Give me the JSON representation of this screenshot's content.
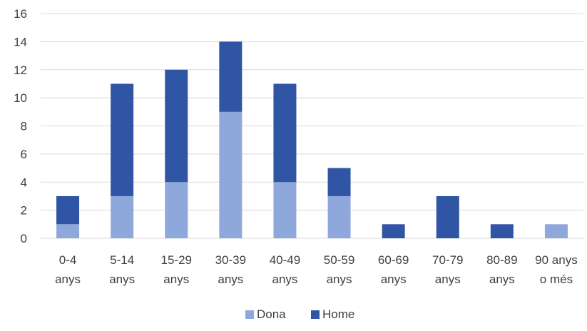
{
  "chart_data": {
    "type": "bar",
    "stacked": true,
    "title": "",
    "xlabel": "",
    "ylabel": "",
    "ylim": [
      0,
      16
    ],
    "yticks": [
      0,
      2,
      4,
      6,
      8,
      10,
      12,
      14,
      16
    ],
    "grid": true,
    "legend_position": "bottom",
    "categories": [
      [
        "0-4",
        "anys"
      ],
      [
        "5-14",
        "anys"
      ],
      [
        "15-29",
        "anys"
      ],
      [
        "30-39",
        "anys"
      ],
      [
        "40-49",
        "anys"
      ],
      [
        "50-59",
        "anys"
      ],
      [
        "60-69",
        "anys"
      ],
      [
        "70-79",
        "anys"
      ],
      [
        "80-89",
        "anys"
      ],
      [
        "90 anys",
        "o més"
      ]
    ],
    "series": [
      {
        "name": "Dona",
        "color": "#8FA8DC",
        "values": [
          1,
          3,
          4,
          9,
          4,
          3,
          0,
          0,
          0,
          1
        ]
      },
      {
        "name": "Home",
        "color": "#2F55A4",
        "values": [
          2,
          8,
          8,
          5,
          7,
          2,
          1,
          3,
          1,
          0
        ]
      }
    ]
  }
}
